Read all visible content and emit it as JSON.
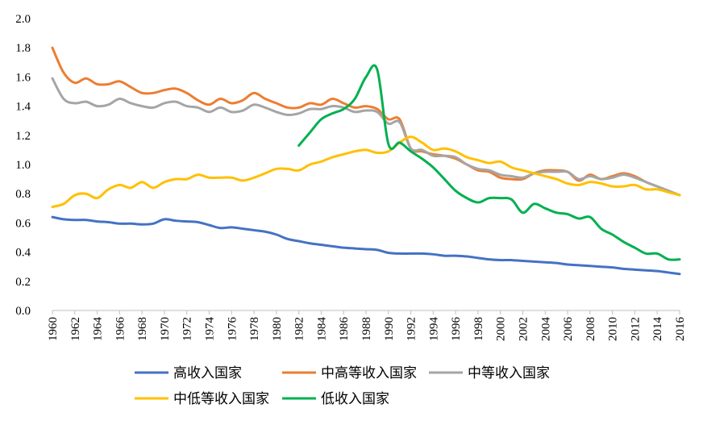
{
  "chart_data": {
    "type": "line",
    "title": "",
    "xlabel": "",
    "ylabel": "",
    "ylim": [
      0,
      2.0
    ],
    "yticks": [
      "0.0",
      "0.2",
      "0.4",
      "0.6",
      "0.8",
      "1.0",
      "1.2",
      "1.4",
      "1.6",
      "1.8",
      "2.0"
    ],
    "xlim": [
      1960,
      2016
    ],
    "xticks": [
      "1960",
      "1962",
      "1964",
      "1966",
      "1968",
      "1970",
      "1972",
      "1974",
      "1976",
      "1978",
      "1980",
      "1982",
      "1984",
      "1986",
      "1988",
      "1990",
      "1992",
      "1994",
      "1996",
      "1998",
      "2000",
      "2002",
      "2004",
      "2006",
      "2008",
      "2010",
      "2012",
      "2014",
      "2016"
    ],
    "grid": false,
    "legend_position": "bottom",
    "series": [
      {
        "name": "高收入国家",
        "color": "#4472C4",
        "x": [
          1960,
          1961,
          1962,
          1963,
          1964,
          1965,
          1966,
          1967,
          1968,
          1969,
          1970,
          1971,
          1972,
          1973,
          1974,
          1975,
          1976,
          1977,
          1978,
          1979,
          1980,
          1981,
          1982,
          1983,
          1984,
          1985,
          1986,
          1987,
          1988,
          1989,
          1990,
          1991,
          1992,
          1993,
          1994,
          1995,
          1996,
          1997,
          1998,
          1999,
          2000,
          2001,
          2002,
          2003,
          2004,
          2005,
          2006,
          2007,
          2008,
          2009,
          2010,
          2011,
          2012,
          2013,
          2014,
          2015,
          2016
        ],
        "y": [
          0.64,
          0.625,
          0.62,
          0.62,
          0.61,
          0.605,
          0.595,
          0.595,
          0.59,
          0.595,
          0.625,
          0.615,
          0.61,
          0.605,
          0.585,
          0.565,
          0.57,
          0.56,
          0.55,
          0.54,
          0.52,
          0.49,
          0.475,
          0.46,
          0.45,
          0.44,
          0.43,
          0.425,
          0.42,
          0.415,
          0.395,
          0.39,
          0.39,
          0.39,
          0.385,
          0.375,
          0.375,
          0.37,
          0.36,
          0.35,
          0.345,
          0.345,
          0.34,
          0.335,
          0.33,
          0.325,
          0.315,
          0.31,
          0.305,
          0.3,
          0.295,
          0.285,
          0.28,
          0.275,
          0.27,
          0.26,
          0.25
        ]
      },
      {
        "name": "中高等收入国家",
        "color": "#ED7D31",
        "x": [
          1960,
          1961,
          1962,
          1963,
          1964,
          1965,
          1966,
          1967,
          1968,
          1969,
          1970,
          1971,
          1972,
          1973,
          1974,
          1975,
          1976,
          1977,
          1978,
          1979,
          1980,
          1981,
          1982,
          1983,
          1984,
          1985,
          1986,
          1987,
          1988,
          1989,
          1990,
          1991,
          1992,
          1993,
          1994,
          1995,
          1996,
          1997,
          1998,
          1999,
          2000,
          2001,
          2002,
          2003,
          2004,
          2005,
          2006,
          2007,
          2008,
          2009,
          2010,
          2011,
          2012,
          2013,
          2014,
          2015,
          2016
        ],
        "y": [
          1.8,
          1.63,
          1.56,
          1.59,
          1.55,
          1.55,
          1.57,
          1.53,
          1.49,
          1.49,
          1.51,
          1.52,
          1.49,
          1.44,
          1.41,
          1.45,
          1.42,
          1.44,
          1.49,
          1.45,
          1.42,
          1.39,
          1.39,
          1.42,
          1.41,
          1.45,
          1.42,
          1.39,
          1.4,
          1.38,
          1.31,
          1.31,
          1.11,
          1.09,
          1.07,
          1.06,
          1.04,
          1.0,
          0.96,
          0.95,
          0.91,
          0.9,
          0.9,
          0.94,
          0.96,
          0.96,
          0.95,
          0.89,
          0.93,
          0.9,
          0.92,
          0.94,
          0.92,
          0.88,
          0.85,
          0.82,
          0.79
        ]
      },
      {
        "name": "中等收入国家",
        "color": "#A5A5A5",
        "x": [
          1960,
          1961,
          1962,
          1963,
          1964,
          1965,
          1966,
          1967,
          1968,
          1969,
          1970,
          1971,
          1972,
          1973,
          1974,
          1975,
          1976,
          1977,
          1978,
          1979,
          1980,
          1981,
          1982,
          1983,
          1984,
          1985,
          1986,
          1987,
          1988,
          1989,
          1990,
          1991,
          1992,
          1993,
          1994,
          1995,
          1996,
          1997,
          1998,
          1999,
          2000,
          2001,
          2002,
          2003,
          2004,
          2005,
          2006,
          2007,
          2008,
          2009,
          2010,
          2011,
          2012,
          2013,
          2014,
          2015,
          2016
        ],
        "y": [
          1.59,
          1.45,
          1.42,
          1.43,
          1.4,
          1.41,
          1.45,
          1.42,
          1.4,
          1.39,
          1.42,
          1.43,
          1.4,
          1.39,
          1.36,
          1.39,
          1.36,
          1.37,
          1.41,
          1.39,
          1.36,
          1.34,
          1.35,
          1.38,
          1.38,
          1.4,
          1.39,
          1.36,
          1.37,
          1.36,
          1.28,
          1.29,
          1.11,
          1.1,
          1.06,
          1.06,
          1.05,
          1.0,
          0.97,
          0.96,
          0.93,
          0.92,
          0.91,
          0.94,
          0.95,
          0.95,
          0.95,
          0.9,
          0.92,
          0.9,
          0.91,
          0.93,
          0.91,
          0.88,
          0.85,
          0.82,
          0.79
        ]
      },
      {
        "name": "中低等收入国家",
        "color": "#FFC000",
        "x": [
          1960,
          1961,
          1962,
          1963,
          1964,
          1965,
          1966,
          1967,
          1968,
          1969,
          1970,
          1971,
          1972,
          1973,
          1974,
          1975,
          1976,
          1977,
          1978,
          1979,
          1980,
          1981,
          1982,
          1983,
          1984,
          1985,
          1986,
          1987,
          1988,
          1989,
          1990,
          1991,
          1992,
          1993,
          1994,
          1995,
          1996,
          1997,
          1998,
          1999,
          2000,
          2001,
          2002,
          2003,
          2004,
          2005,
          2006,
          2007,
          2008,
          2009,
          2010,
          2011,
          2012,
          2013,
          2014,
          2015,
          2016
        ],
        "y": [
          0.71,
          0.73,
          0.79,
          0.8,
          0.77,
          0.83,
          0.86,
          0.84,
          0.88,
          0.84,
          0.88,
          0.9,
          0.9,
          0.93,
          0.91,
          0.91,
          0.91,
          0.89,
          0.91,
          0.94,
          0.97,
          0.97,
          0.96,
          1.0,
          1.02,
          1.05,
          1.07,
          1.09,
          1.1,
          1.08,
          1.09,
          1.15,
          1.19,
          1.15,
          1.1,
          1.11,
          1.09,
          1.05,
          1.03,
          1.01,
          1.02,
          0.98,
          0.96,
          0.94,
          0.92,
          0.9,
          0.87,
          0.86,
          0.88,
          0.87,
          0.85,
          0.85,
          0.86,
          0.83,
          0.83,
          0.81,
          0.79
        ]
      },
      {
        "name": "低收入国家",
        "color": "#00B050",
        "x": [
          1982,
          1983,
          1984,
          1985,
          1986,
          1987,
          1988,
          1989,
          1990,
          1991,
          1992,
          1993,
          1994,
          1995,
          1996,
          1997,
          1998,
          1999,
          2000,
          2001,
          2002,
          2003,
          2004,
          2005,
          2006,
          2007,
          2008,
          2009,
          2010,
          2011,
          2012,
          2013,
          2014,
          2015,
          2016
        ],
        "y": [
          1.13,
          1.22,
          1.31,
          1.35,
          1.38,
          1.45,
          1.6,
          1.65,
          1.14,
          1.15,
          1.09,
          1.04,
          0.98,
          0.9,
          0.82,
          0.77,
          0.74,
          0.77,
          0.77,
          0.76,
          0.67,
          0.73,
          0.7,
          0.67,
          0.66,
          0.63,
          0.64,
          0.56,
          0.52,
          0.47,
          0.43,
          0.39,
          0.39,
          0.35,
          0.35
        ]
      }
    ]
  }
}
